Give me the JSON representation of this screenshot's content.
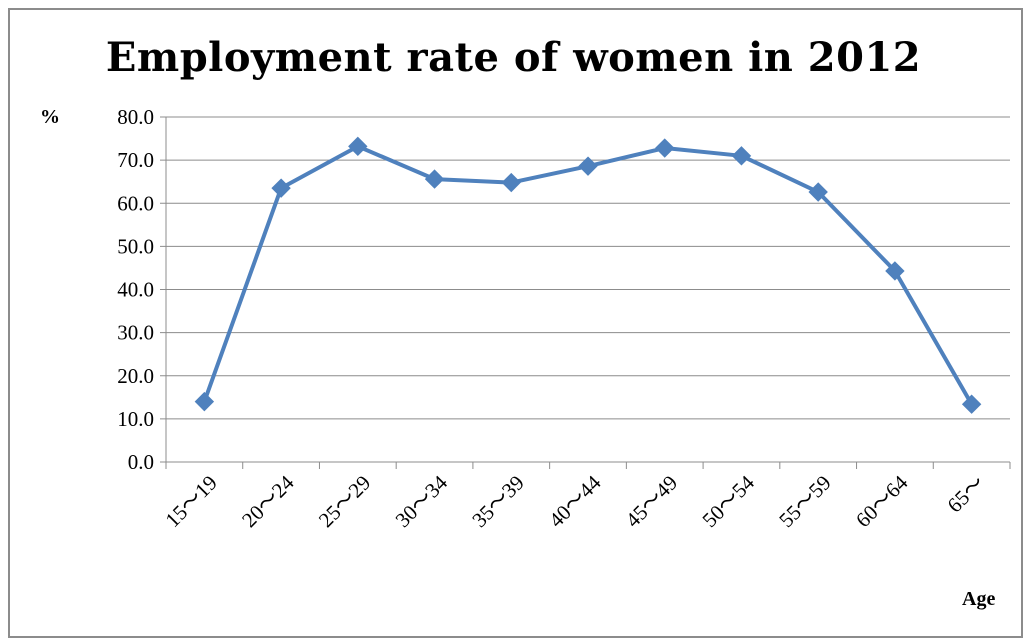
{
  "chart_data": {
    "type": "line",
    "title": "Employment rate of women in 2012",
    "ylabel": "%",
    "xlabel": "Age",
    "categories": [
      "15～19",
      "20～24",
      "25～29",
      "30～34",
      "35～39",
      "40～44",
      "45～49",
      "50～54",
      "55～59",
      "60～64",
      "65～"
    ],
    "series": [
      {
        "values": [
          14.0,
          63.5,
          73.2,
          65.6,
          64.8,
          68.6,
          72.8,
          71.0,
          62.6,
          44.3,
          13.4
        ],
        "color": "#4f81bd"
      }
    ],
    "ylim": [
      0,
      80
    ],
    "yticks": [
      "0.0",
      "10.0",
      "20.0",
      "30.0",
      "40.0",
      "50.0",
      "60.0",
      "70.0",
      "80.0"
    ],
    "grid": true,
    "marker": "diamond"
  }
}
